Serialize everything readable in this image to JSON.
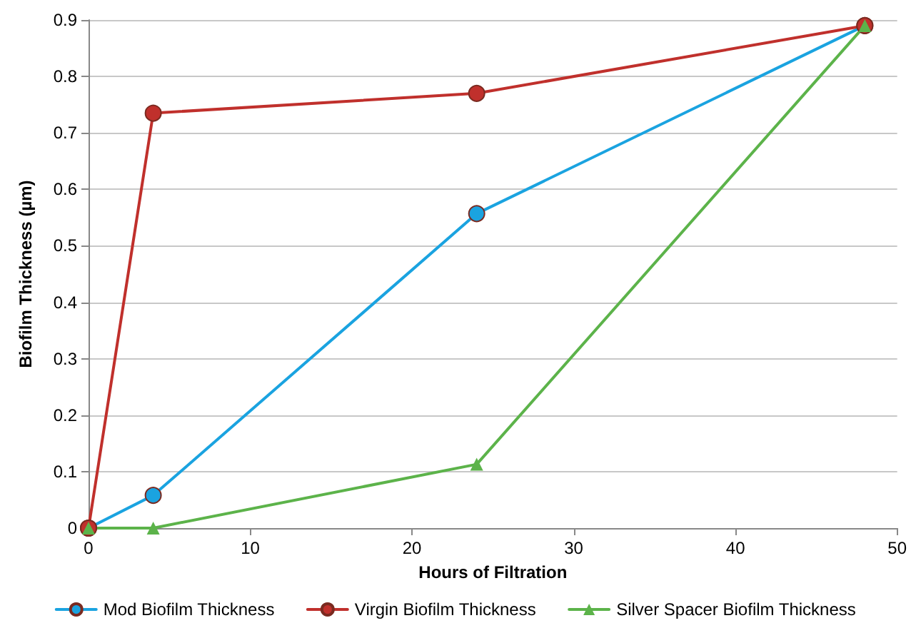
{
  "chart_data": {
    "type": "line",
    "xlabel": "Hours of Filtration",
    "ylabel": "Biofilm Thickness (µm)",
    "x": [
      0,
      4,
      24,
      48
    ],
    "series": [
      {
        "name": "Mod Biofilm Thickness",
        "color": "#1aa3e0",
        "marker": "circle",
        "values": [
          0,
          0.058,
          0.557,
          0.89
        ]
      },
      {
        "name": "Virgin Biofilm Thickness",
        "color": "#c0302c",
        "marker": "circle",
        "values": [
          0,
          0.735,
          0.77,
          0.89
        ]
      },
      {
        "name": "Silver Spacer Biofilm Thickness",
        "color": "#5cb34a",
        "marker": "triangle",
        "values": [
          0,
          0,
          0.113,
          0.89
        ]
      }
    ],
    "xlim": [
      0,
      50
    ],
    "xticks": [
      0,
      10,
      20,
      30,
      40,
      50
    ],
    "ylim": [
      0,
      0.9
    ],
    "yticks": [
      0,
      0.1,
      0.2,
      0.3,
      0.4,
      0.5,
      0.6,
      0.7,
      0.8,
      0.9
    ],
    "grid": "y",
    "legend": "bottom",
    "line_style": "solid"
  }
}
